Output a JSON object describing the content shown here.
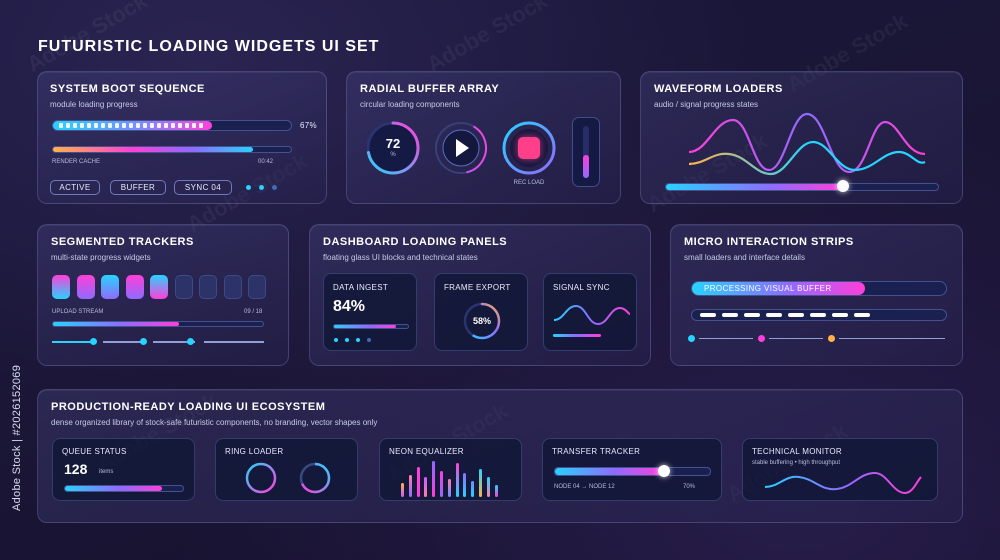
{
  "page": {
    "title": "FUTURISTIC LOADING WIDGETS UI SET"
  },
  "stock": {
    "label": "Adobe Stock | #2026152069",
    "watermark": "Adobe Stock"
  },
  "colors": {
    "cyan": "#27d3ff",
    "violet": "#8f6bff",
    "magenta": "#ff3fd8",
    "orange": "#ffb347",
    "panel_bg": "#1b1d44"
  },
  "boot": {
    "title": "SYSTEM BOOT SEQUENCE",
    "subtitle": "module loading progress",
    "main_progress": 0.67,
    "main_progress_label": "67%",
    "cache_progress": 0.84,
    "cache_label": "RENDER CACHE",
    "cache_time": "00:42",
    "chips": [
      "ACTIVE",
      "BUFFER",
      "SYNC 04"
    ]
  },
  "radial": {
    "title": "RADIAL BUFFER ARRAY",
    "subtitle": "circular loading components",
    "ring_value": "72",
    "ring_unit": "%",
    "ring_progress": 0.72,
    "rec_label": "REC LOAD",
    "vertical_level": 0.45
  },
  "waveform": {
    "title": "WAVEFORM LOADERS",
    "subtitle": "audio / signal progress states",
    "slider_progress": 0.65
  },
  "segmented": {
    "title": "SEGMENTED TRACKERS",
    "subtitle": "multi-state progress widgets",
    "segments_total": 9,
    "segments_filled": 5,
    "stream_label": "UPLOAD STREAM",
    "stream_count": "09 / 18",
    "stream_progress": 0.6
  },
  "dashboard": {
    "title": "DASHBOARD LOADING PANELS",
    "subtitle": "floating glass UI blocks and technical states",
    "ingest_label": "DATA INGEST",
    "ingest_value": "84%",
    "ingest_progress": 0.84,
    "export_label": "FRAME EXPORT",
    "export_value": "58%",
    "export_progress": 0.58,
    "sync_label": "SIGNAL SYNC"
  },
  "micro": {
    "title": "MICRO INTERACTION STRIPS",
    "subtitle": "small loaders and interface details",
    "bar_label": "PROCESSING VISUAL BUFFER",
    "bar_progress": 0.68
  },
  "ecosystem": {
    "title": "PRODUCTION-READY LOADING UI ECOSYSTEM",
    "subtitle": "dense organized library of stock-safe futuristic components, no branding, vector shapes only",
    "queue_label": "QUEUE STATUS",
    "queue_value": "128",
    "queue_unit": "items",
    "queue_progress": 0.82,
    "ring_label": "RING LOADER",
    "equalizer_label": "NEON EQUALIZER",
    "transfer_label": "TRANSFER TRACKER",
    "transfer_route": "NODE 04 → NODE 12",
    "transfer_value": "70%",
    "transfer_progress": 0.7,
    "monitor_label": "TECHNICAL MONITOR",
    "monitor_sub": "stable buffering • high throughput"
  }
}
